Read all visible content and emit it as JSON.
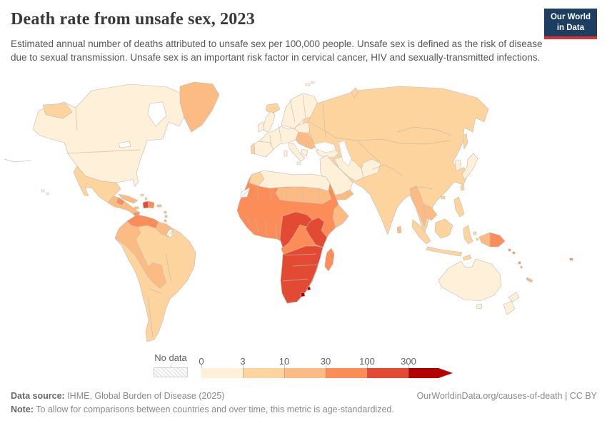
{
  "header": {
    "title": "Death rate from unsafe sex, 2023",
    "subtitle": "Estimated annual number of deaths attributed to unsafe sex per 100,000 people. Unsafe sex is defined as the risk of disease due to sexual transmission. Unsafe sex is an important risk factor in cervical cancer, HIV and sexually-transmitted infections."
  },
  "logo": {
    "line1": "Our World",
    "line2": "in Data",
    "bg": "#1d3d63",
    "accent": "#dc2f2f"
  },
  "legend": {
    "no_data_label": "No data",
    "ticks": [
      "0",
      "3",
      "10",
      "30",
      "100",
      "300"
    ]
  },
  "footer": {
    "source_label": "Data source:",
    "source_text": " IHME, Global Burden of Disease (2025)",
    "right_text": "OurWorldinData.org/causes-of-death | CC BY",
    "note_label": "Note:",
    "note_text": " To allow for comparisons between countries and over time, this metric is age-standardized."
  },
  "chart_data": {
    "type": "choropleth_map",
    "title": "Death rate from unsafe sex, 2023",
    "metric": "Deaths attributed to unsafe sex per 100,000 people (age-standardized)",
    "year": 2023,
    "projection": "world map",
    "legend_ticks": [
      "0",
      "3",
      "10",
      "30",
      "100",
      "300"
    ],
    "bins": [
      "0-3",
      "3-10",
      "10-30",
      "30-100",
      "100-300",
      "300+"
    ],
    "palette": [
      "#fef0d9",
      "#fdd49e",
      "#fdbb84",
      "#fc8d59",
      "#e34a33",
      "#b30000"
    ],
    "no_data_label": "No data",
    "no_data_pattern": "diagonal-hatch",
    "regions": {
      "canada-usa": 0,
      "hawaii": 0,
      "greenland": 2,
      "iceland": 1,
      "chukotka": 1,
      "svalbard": 0,
      "novaya-zemlya": 1,
      "mexico": 1,
      "central-america": 2,
      "honduras": 3,
      "panama": 3,
      "cuba": 2,
      "jamaica": 2,
      "haiti": 4,
      "dominican-republic": 3,
      "puerto-rico": 2,
      "lesser-antilles": 2,
      "bahamas": 1,
      "south-america-base": 1,
      "venezuela": 3,
      "guyanas": 2,
      "french-guiana": "nodata",
      "andean-band": 2,
      "scandinavia": 0,
      "uk": 0,
      "ireland": 0,
      "iberia": 0,
      "portugal": 1,
      "western-europe": 0,
      "italy": 0,
      "sicily": 0,
      "sardinia": 0,
      "central-europe": 0,
      "greece": 0,
      "balkans": 2,
      "eastern-europe": 1,
      "asia-base": 1,
      "turkey": 0,
      "iran": 0,
      "afghanistan": 0,
      "arabia": 0,
      "yemen-oman": 2,
      "japan": 0,
      "south-korea": 0,
      "sakhalin": 1,
      "myanmar-thailand": 2,
      "cambodia": 2,
      "sri-lanka": 2,
      "taiwan": 1,
      "hainan": 1,
      "philippines": 1,
      "sumatra": 1,
      "borneo": 1,
      "java": 1,
      "sulawesi": 1,
      "moluccas": 1,
      "timor": 1,
      "new-guinea-west": 2,
      "papua-new-guinea": 3,
      "solomon-islands": 3,
      "vanuatu": 3,
      "fiji": 3,
      "new-caledonia": 2,
      "australia": 0,
      "tasmania": 0,
      "new-zealand": 0,
      "africa-base": 3,
      "north-africa": 0,
      "morocco": 1,
      "western-sahara": "nodata",
      "sahel-band": 2,
      "somalia": 2,
      "central-africa": 4,
      "east-africa": 4,
      "southern-africa": 4,
      "lesotho": 5,
      "eswatini": 5,
      "madagascar": 3
    }
  }
}
